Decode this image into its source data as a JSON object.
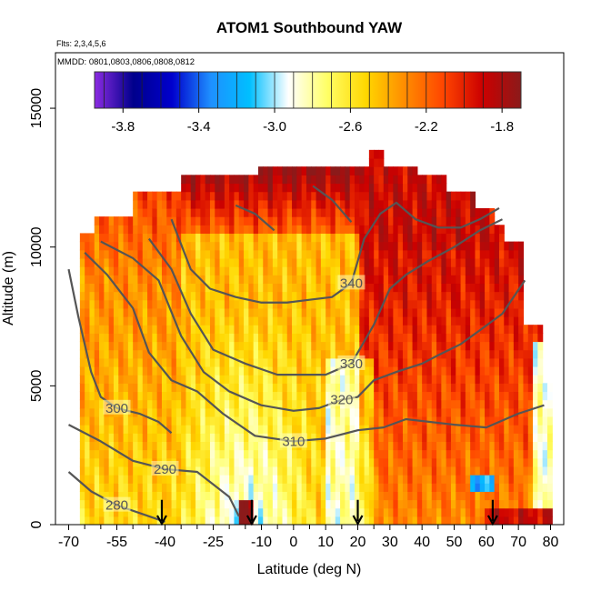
{
  "chart_data": {
    "type": "heatmap",
    "title": "ATOM1 Southbound YAW",
    "subtitle_lines": [
      "Flts: 2,3,4,5,6",
      "MMDD: 0801,0803,0806,0808,0812"
    ],
    "xlabel": "Latitude (deg N)",
    "ylabel": "Altitude (m)",
    "xlim": [
      -70,
      80
    ],
    "ylim": [
      0,
      17000
    ],
    "x_ticks": [
      -70,
      -55,
      -40,
      -25,
      -10,
      0,
      10,
      20,
      30,
      40,
      50,
      60,
      70,
      80
    ],
    "x_tick_labels": [
      "-70",
      "-55",
      "-40",
      "-25",
      "-10",
      "0",
      "10",
      "20",
      "30",
      "40",
      "50",
      "60",
      "70",
      "80"
    ],
    "x_minor_ticks": [
      -65,
      -60,
      -50,
      -45,
      -35,
      -30,
      -20,
      -15,
      -5,
      5,
      15,
      25,
      35,
      45,
      55,
      65,
      75
    ],
    "y_ticks": [
      0,
      5000,
      10000,
      15000
    ],
    "y_tick_labels": [
      "0",
      "5000",
      "10000",
      "15000"
    ],
    "colorbar": {
      "range": [
        -3.95,
        -1.7
      ],
      "ticks": [
        -3.8,
        -3.4,
        -3.0,
        -2.6,
        -2.2,
        -1.8
      ],
      "tick_labels": [
        "-3.8",
        "-3.4",
        "-3.0",
        "-2.6",
        "-2.2",
        "-1.8"
      ],
      "colors": [
        "#8b2be2",
        "#00008b",
        "#0000cd",
        "#1e90ff",
        "#00bfff",
        "#ffffff",
        "#ffff66",
        "#ffd700",
        "#ff8c00",
        "#ff4500",
        "#cc0000",
        "#8b1a1a"
      ]
    },
    "contours": [
      {
        "label": "280",
        "points": [
          [
            -70,
            1900
          ],
          [
            -63,
            1200
          ],
          [
            -55,
            700
          ],
          [
            -45,
            300
          ],
          [
            -40,
            100
          ]
        ]
      },
      {
        "label": "290",
        "points": [
          [
            -70,
            3600
          ],
          [
            -60,
            3000
          ],
          [
            -50,
            2300
          ],
          [
            -40,
            2000
          ],
          [
            -30,
            1900
          ],
          [
            -20,
            1000
          ],
          [
            -17,
            300
          ]
        ]
      },
      {
        "label": "300",
        "points": [
          [
            -70,
            9200
          ],
          [
            -67,
            7500
          ],
          [
            -63,
            5500
          ],
          [
            -60,
            4600
          ],
          [
            -55,
            4200
          ],
          [
            -48,
            4000
          ],
          [
            -42,
            3700
          ],
          [
            -38,
            3300
          ]
        ]
      },
      {
        "label": "310",
        "points": [
          [
            -65,
            9800
          ],
          [
            -58,
            9000
          ],
          [
            -50,
            7800
          ],
          [
            -45,
            6200
          ],
          [
            -38,
            5200
          ],
          [
            -30,
            4800
          ],
          [
            -22,
            4000
          ],
          [
            -12,
            3200
          ],
          [
            0,
            3000
          ],
          [
            10,
            3100
          ],
          [
            20,
            3400
          ],
          [
            28,
            3500
          ],
          [
            35,
            3800
          ],
          [
            50,
            3600
          ],
          [
            60,
            3500
          ],
          [
            70,
            4000
          ],
          [
            78,
            4300
          ]
        ]
      },
      {
        "label": "320",
        "points": [
          [
            -60,
            10200
          ],
          [
            -50,
            9600
          ],
          [
            -42,
            8800
          ],
          [
            -35,
            6800
          ],
          [
            -28,
            5500
          ],
          [
            -20,
            4800
          ],
          [
            -10,
            4300
          ],
          [
            0,
            4100
          ],
          [
            8,
            4200
          ],
          [
            15,
            4500
          ],
          [
            20,
            4600
          ],
          [
            25,
            5200
          ],
          [
            32,
            5500
          ],
          [
            40,
            5800
          ],
          [
            45,
            6100
          ],
          [
            52,
            6500
          ],
          [
            58,
            7000
          ],
          [
            65,
            7600
          ],
          [
            72,
            8800
          ]
        ]
      },
      {
        "label": "330",
        "points": [
          [
            -45,
            10300
          ],
          [
            -38,
            9200
          ],
          [
            -32,
            7600
          ],
          [
            -25,
            6300
          ],
          [
            -15,
            5800
          ],
          [
            -5,
            5400
          ],
          [
            2,
            5400
          ],
          [
            10,
            5400
          ],
          [
            18,
            5800
          ],
          [
            25,
            7200
          ],
          [
            30,
            8500
          ],
          [
            35,
            9000
          ],
          [
            42,
            9500
          ],
          [
            50,
            10000
          ],
          [
            58,
            10600
          ],
          [
            65,
            11000
          ]
        ]
      },
      {
        "label": "340",
        "points": [
          [
            -38,
            11000
          ],
          [
            -32,
            9200
          ],
          [
            -26,
            8500
          ],
          [
            -18,
            8200
          ],
          [
            -10,
            8000
          ],
          [
            -2,
            8000
          ],
          [
            5,
            8100
          ],
          [
            12,
            8200
          ],
          [
            18,
            8700
          ],
          [
            22,
            10300
          ],
          [
            27,
            11200
          ],
          [
            32,
            11600
          ],
          [
            38,
            11000
          ],
          [
            45,
            10700
          ],
          [
            52,
            10700
          ],
          [
            58,
            11000
          ],
          [
            64,
            11400
          ]
        ]
      },
      {
        "label": "",
        "points": [
          [
            -18,
            11500
          ],
          [
            -12,
            11200
          ],
          [
            -6,
            10600
          ]
        ]
      },
      {
        "label": "",
        "points": [
          [
            6,
            12200
          ],
          [
            12,
            11700
          ],
          [
            18,
            10900
          ]
        ]
      }
    ],
    "arrows_at_latitude": [
      -41,
      -13,
      20,
      62
    ]
  }
}
